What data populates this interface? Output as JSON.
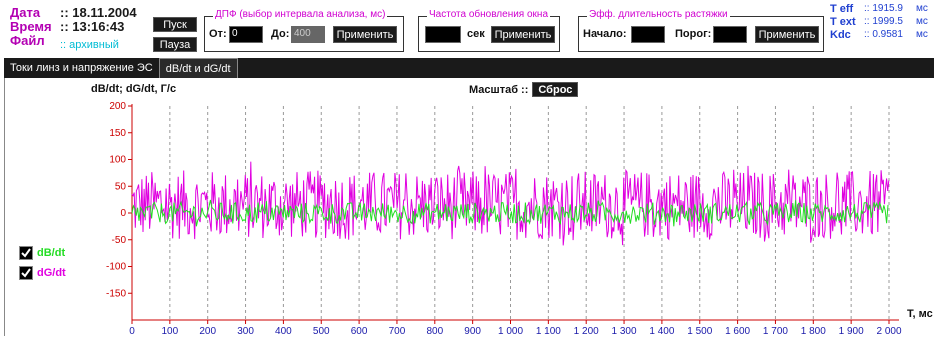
{
  "info": {
    "date_label": "Дата",
    "date_value": ":: 18.11.2004",
    "time_label": "Время",
    "time_value": ":: 13:16:43",
    "file_label": "Файл",
    "file_value": ":: архивный"
  },
  "controls": {
    "start_label": "Пуск",
    "pause_label": "Пауза"
  },
  "dpf": {
    "title": "ДПФ (выбор интервала анализа, мс)",
    "from_label": "От:",
    "from_value": "0",
    "to_label": "До:",
    "to_value": "400",
    "apply_label": "Применить"
  },
  "refresh": {
    "title": "Частота обновления окна",
    "value": "",
    "unit_label": "сек",
    "apply_label": "Применить"
  },
  "eff": {
    "title": "Эфф. длительность растяжки",
    "start_label": "Начало:",
    "start_value": "",
    "threshold_label": "Порог:",
    "threshold_value": "",
    "apply_label": "Применить"
  },
  "stats": [
    {
      "name": "T eff",
      "value": ":: 1915.9",
      "unit": "мс"
    },
    {
      "name": "T ext",
      "value": ":: 1999.5",
      "unit": "мс"
    },
    {
      "name": "Kdc",
      "value": ":: 0.9581",
      "unit": "мс"
    }
  ],
  "tabs": [
    {
      "label": "Токи линз и напряжение ЭС",
      "active": false
    },
    {
      "label": "dB/dt и dG/dt",
      "active": true
    }
  ],
  "scale": {
    "label": "Масштаб ::",
    "reset_label": "Сброс"
  },
  "legend": [
    {
      "label": "dB/dt",
      "color": "#22dd22",
      "checked": true
    },
    {
      "label": "dG/dt",
      "color": "#e000e0",
      "checked": true
    }
  ],
  "colors": {
    "dBdt": "#22dd22",
    "dGdt": "#e000e0",
    "axis_red": "#cc0000",
    "axis_blue": "#1a1aaa"
  },
  "chart_data": {
    "type": "line",
    "ylabel": "dB/dt; dG/dt, Г/с",
    "xlabel": "T, мс",
    "xlim": [
      0,
      2000
    ],
    "ylim": [
      -200,
      200
    ],
    "x_ticks": [
      "0",
      "100",
      "200",
      "300",
      "400",
      "500",
      "600",
      "700",
      "800",
      "900",
      "1 000",
      "1 100",
      "1 200",
      "1 300",
      "1 400",
      "1 500",
      "1 600",
      "1 700",
      "1 800",
      "1 900",
      "2 000"
    ],
    "y_ticks": [
      "200",
      "150",
      "100",
      "50",
      "0",
      "-50",
      "-100",
      "-150"
    ],
    "series": [
      {
        "name": "dG/dt",
        "amplitude_range": [
          -50,
          80
        ],
        "approx_center": 0
      },
      {
        "name": "dB/dt",
        "amplitude_range": [
          -20,
          20
        ],
        "approx_center": 0
      }
    ]
  }
}
